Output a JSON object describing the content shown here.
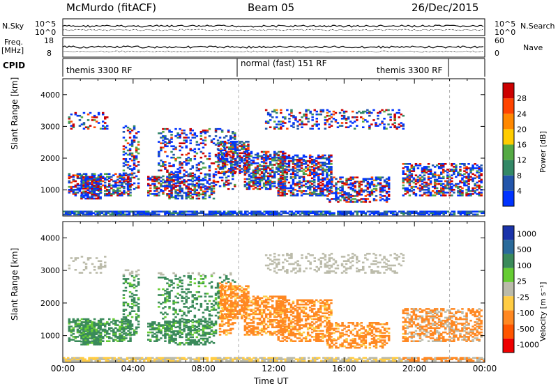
{
  "header": {
    "radar": "McMurdo (fitACF)",
    "beam": "Beam 05",
    "date": "26/Dec/2015"
  },
  "side_labels": {
    "nsky": "N.Sky",
    "nsearch": "N.Search",
    "freq": "Freq.",
    "freq_unit": "[MHz]",
    "nave": "Nave",
    "cpid": "CPID"
  },
  "noise_axis": {
    "left_top": "10^5",
    "left_bottom": "10^0",
    "right_top": "10^5",
    "right_bottom": "10^0"
  },
  "freq_axis": {
    "left_top": "18",
    "left_bottom": "8",
    "right_top": "60",
    "right_bottom": "0"
  },
  "cpid_segments": [
    {
      "label": "themis 3300 RF",
      "start_h": 0,
      "end_h": 10
    },
    {
      "label": "normal (fast) 151 RF",
      "start_h": 10,
      "end_h": 22
    },
    {
      "label": "themis 3300 RF",
      "start_h": 16.6,
      "end_h": 22
    }
  ],
  "chart_data": [
    {
      "type": "heatmap",
      "name": "Power",
      "ylabel": "Slant Range [km]",
      "colorbar_label": "Power [dB]",
      "colorbar_ticks": [
        "4",
        "8",
        "12",
        "16",
        "20",
        "24",
        "28"
      ],
      "colors": [
        "#0033ff",
        "#2255aa",
        "#338866",
        "#55aa44",
        "#ffcc00",
        "#ff8800",
        "#ff4400",
        "#cc0000"
      ],
      "ylim": [
        180,
        4500
      ],
      "yticks": [
        "1000",
        "2000",
        "3000",
        "4000"
      ],
      "xlim_h": [
        0,
        24
      ]
    },
    {
      "type": "heatmap",
      "name": "Velocity",
      "ylabel": "Slant Range [km]",
      "xlabel": "Time UT",
      "colorbar_label": "Velocity [m s⁻¹]",
      "colorbar_ticks": [
        "1000",
        "500",
        "100",
        "25",
        "-25",
        "-100",
        "-500",
        "-1000"
      ],
      "colors": [
        "#1a33aa",
        "#2a6a9a",
        "#3a8a5a",
        "#66cc33",
        "#bbbbaa",
        "#ffcc44",
        "#ff8822",
        "#ff5500",
        "#ee0000"
      ],
      "ylim": [
        180,
        4500
      ],
      "yticks": [
        "1000",
        "2000",
        "3000",
        "4000"
      ],
      "xticks": [
        "00:00",
        "04:00",
        "08:00",
        "12:00",
        "16:00",
        "20:00",
        "00:00"
      ]
    }
  ]
}
